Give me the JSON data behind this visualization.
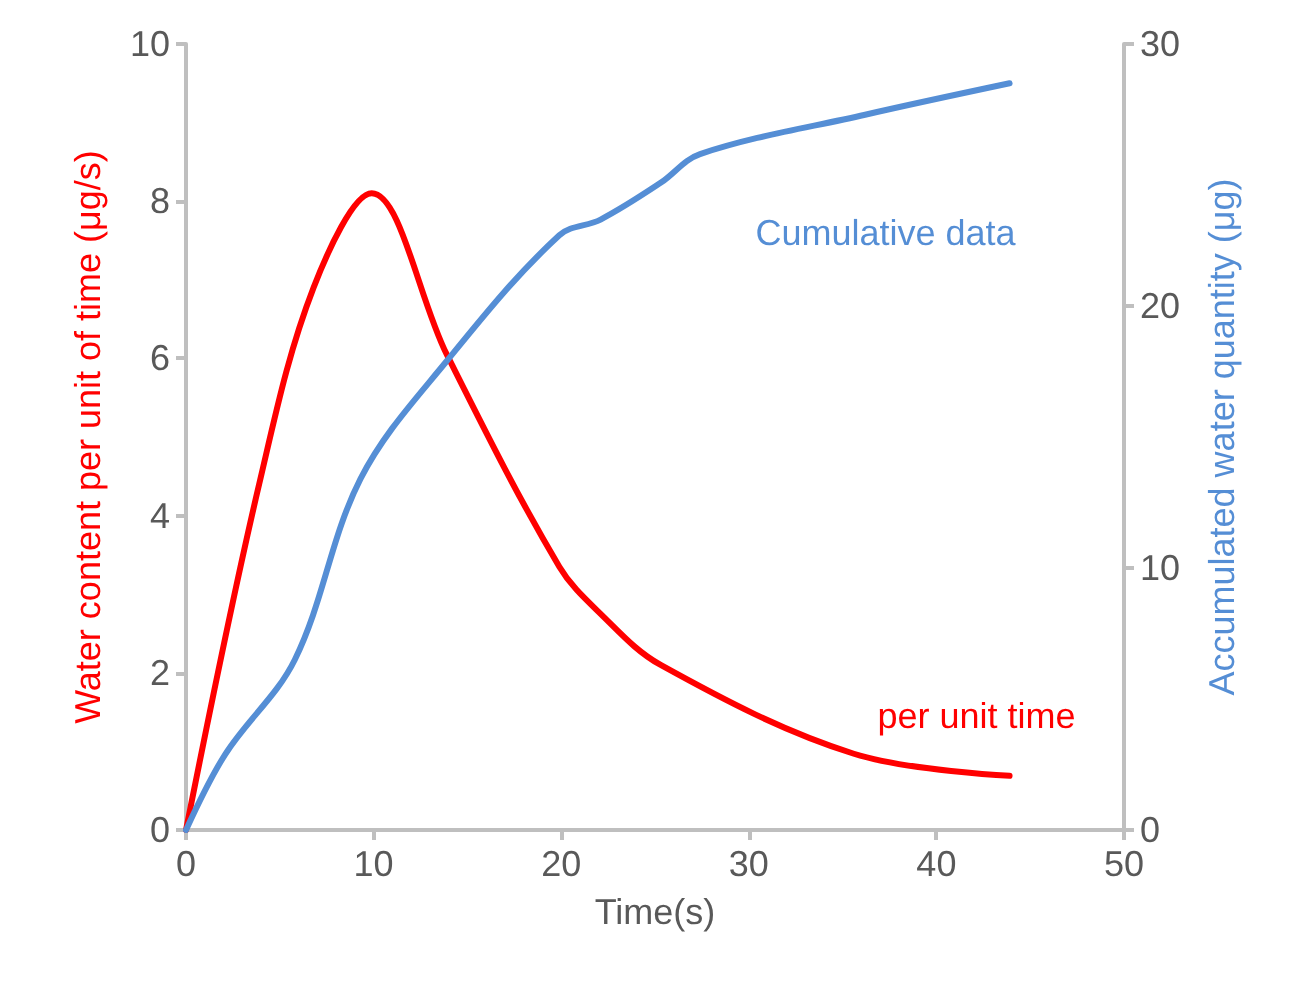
{
  "chart_data": {
    "type": "line",
    "xlabel": "Time(s)",
    "ylabel": "Water content per unit of time (μg/s)",
    "y2label": "Accumulated water quantity (μg)",
    "series": [
      {
        "name": "per unit time",
        "color": "#ff0000",
        "x": [
          0,
          3.9,
          6.8,
          9.9,
          13.9,
          19.9,
          22.1,
          25.3,
          35.6,
          43.9
        ],
        "values": [
          0,
          4.4,
          6.9,
          8.1,
          6.05,
          3.35,
          2.75,
          2.1,
          0.97,
          0.69
        ]
      },
      {
        "name": "Cumulative data",
        "color": "#558ed5",
        "axis": "y2",
        "x": [
          0,
          2.1,
          5.8,
          9.3,
          13.9,
          19.9,
          22.1,
          25.3,
          27.4,
          36.2,
          43.9
        ],
        "values": [
          0,
          2.9,
          6.5,
          13.4,
          17.9,
          22.7,
          23.3,
          24.7,
          25.8,
          27.3,
          28.5
        ]
      }
    ],
    "xlim": [
      0,
      50
    ],
    "xticks": [
      0,
      10,
      20,
      30,
      40,
      50
    ],
    "ylim": [
      0,
      10
    ],
    "yticks": [
      0,
      2,
      4,
      6,
      8,
      10
    ],
    "y2lim": [
      0,
      30
    ],
    "y2ticks": [
      0,
      10,
      20,
      30
    ],
    "grid": false,
    "legend": false,
    "marker": "none",
    "line_style": "solid"
  }
}
